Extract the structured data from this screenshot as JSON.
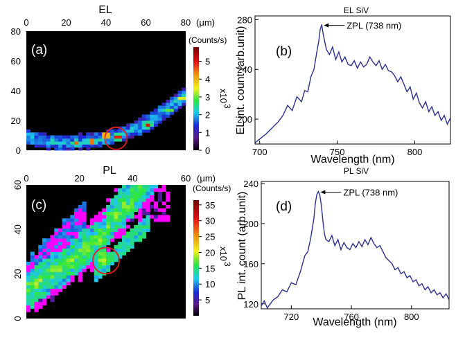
{
  "chart_data": [
    {
      "id": "a",
      "type": "heatmap",
      "panel_label": "(a)",
      "title": "EL",
      "unit": "(μm)",
      "x_ticks": [
        "0",
        "20",
        "40",
        "60",
        "80"
      ],
      "y_ticks": [
        "0",
        "20",
        "40",
        "60",
        "80"
      ],
      "xlim": [
        0,
        80
      ],
      "ylim": [
        0,
        80
      ],
      "colorbar": {
        "label": "(Counts/s)",
        "multiplier": "x10",
        "exponent": "3",
        "ticks": [
          "0",
          "1",
          "2",
          "3",
          "4",
          "5"
        ],
        "range": [
          0,
          5.8
        ]
      },
      "band_centerline": [
        [
          0,
          9
        ],
        [
          10,
          6
        ],
        [
          20,
          5
        ],
        [
          30,
          6
        ],
        [
          40,
          8
        ],
        [
          50,
          12
        ],
        [
          60,
          18
        ],
        [
          70,
          27
        ],
        [
          80,
          37
        ]
      ],
      "hotspots": [
        [
          25,
          5,
          4.5
        ],
        [
          33,
          6,
          5.2
        ],
        [
          40,
          10,
          5.5
        ],
        [
          46,
          9,
          5.8
        ],
        [
          61,
          17,
          5.0
        ],
        [
          72,
          27,
          3.5
        ],
        [
          78,
          35,
          4.0
        ]
      ],
      "circle_center": [
        45,
        8
      ]
    },
    {
      "id": "b",
      "type": "line",
      "panel_label": "(b)",
      "title": "EL SiV",
      "xlabel": "Wavelength (nm)",
      "ylabel": "EL int. count (arb.unit)",
      "annotation": "ZPL (738 nm)",
      "xlim": [
        697,
        823
      ],
      "ylim": [
        180,
        283
      ],
      "x_ticks": [
        "700",
        "750",
        "800"
      ],
      "y_ticks": [
        "200",
        "240",
        "280"
      ],
      "x": [
        697,
        700,
        704,
        708,
        712,
        715,
        718,
        721,
        724,
        727,
        729,
        731,
        733,
        735,
        737,
        738,
        739,
        740,
        741,
        743,
        745,
        747,
        749,
        751,
        753,
        755,
        757,
        759,
        761,
        763,
        765,
        767,
        769,
        771,
        773,
        775,
        777,
        779,
        781,
        783,
        785,
        787,
        789,
        791,
        793,
        795,
        797,
        799,
        801,
        803,
        805,
        807,
        809,
        811,
        813,
        815,
        817,
        819,
        821,
        823
      ],
      "y": [
        181,
        184,
        188,
        193,
        198,
        203,
        211,
        207,
        218,
        214,
        223,
        222,
        234,
        240,
        255,
        262,
        272,
        276,
        268,
        256,
        252,
        258,
        248,
        254,
        246,
        250,
        244,
        243,
        247,
        241,
        246,
        242,
        244,
        250,
        246,
        243,
        247,
        240,
        244,
        239,
        238,
        235,
        230,
        234,
        228,
        222,
        226,
        216,
        221,
        213,
        209,
        214,
        206,
        210,
        203,
        206,
        199,
        203,
        196,
        201
      ]
    },
    {
      "id": "c",
      "type": "heatmap",
      "panel_label": "(c)",
      "title": "PL",
      "unit": "(μm)",
      "x_ticks": [
        "0",
        "20",
        "40",
        "60"
      ],
      "y_ticks": [
        "0",
        "20",
        "40",
        "60"
      ],
      "xlim": [
        0,
        60
      ],
      "ylim": [
        0,
        60
      ],
      "colorbar": {
        "label": "(Counts/s)",
        "multiplier": "x10",
        "exponent": "3",
        "ticks": [
          "5",
          "10",
          "15",
          "20",
          "25",
          "30",
          "35"
        ],
        "range": [
          0,
          36.5
        ]
      },
      "circle_center": [
        30,
        26
      ]
    },
    {
      "id": "d",
      "type": "line",
      "panel_label": "(d)",
      "title": "PL SiV",
      "xlabel": "Wavelength (nm)",
      "ylabel": "PL int. count (arb.unit)",
      "annotation": "ZPL (738 nm)",
      "xlim": [
        700,
        825
      ],
      "ylim": [
        115,
        242
      ],
      "x_ticks": [
        "720",
        "760",
        "800"
      ],
      "y_ticks": [
        "120",
        "160",
        "200",
        "240"
      ],
      "x": [
        700,
        702,
        704,
        706,
        708,
        711,
        714,
        717,
        720,
        723,
        726,
        729,
        731,
        733,
        735,
        736,
        737,
        738,
        739,
        740,
        741,
        742,
        743,
        745,
        747,
        749,
        751,
        753,
        755,
        757,
        759,
        761,
        763,
        765,
        767,
        769,
        771,
        773,
        775,
        777,
        779,
        781,
        783,
        785,
        787,
        789,
        791,
        793,
        795,
        797,
        799,
        801,
        803,
        805,
        807,
        809,
        811,
        813,
        815,
        817,
        819,
        821,
        823,
        825
      ],
      "y": [
        118,
        123,
        116,
        120,
        124,
        127,
        134,
        132,
        141,
        139,
        152,
        168,
        172,
        186,
        205,
        220,
        229,
        232,
        228,
        218,
        203,
        190,
        184,
        182,
        188,
        178,
        184,
        174,
        181,
        176,
        174,
        180,
        176,
        182,
        177,
        184,
        179,
        186,
        180,
        176,
        178,
        172,
        166,
        163,
        160,
        154,
        156,
        150,
        152,
        146,
        148,
        142,
        144,
        138,
        140,
        134,
        137,
        131,
        134,
        129,
        131,
        126,
        130,
        124
      ]
    }
  ]
}
